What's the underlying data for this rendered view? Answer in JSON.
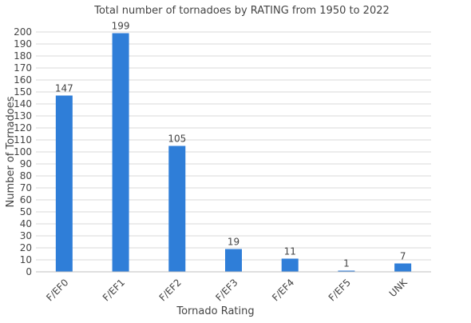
{
  "chart_data": {
    "type": "bar",
    "title": "Total number of tornadoes by RATING from 1950 to 2022",
    "xlabel": "Tornado Rating",
    "ylabel": "Number of Tornadoes",
    "categories": [
      "F/EF0",
      "F/EF1",
      "F/EF2",
      "F/EF3",
      "F/EF4",
      "F/EF5",
      "UNK"
    ],
    "values": [
      147,
      199,
      105,
      19,
      11,
      1,
      7
    ],
    "ylim": [
      0,
      200
    ],
    "ytick_step": 10,
    "grid": true,
    "bar_color": "#2f7ed8",
    "x_tick_rotation_deg": -45
  }
}
